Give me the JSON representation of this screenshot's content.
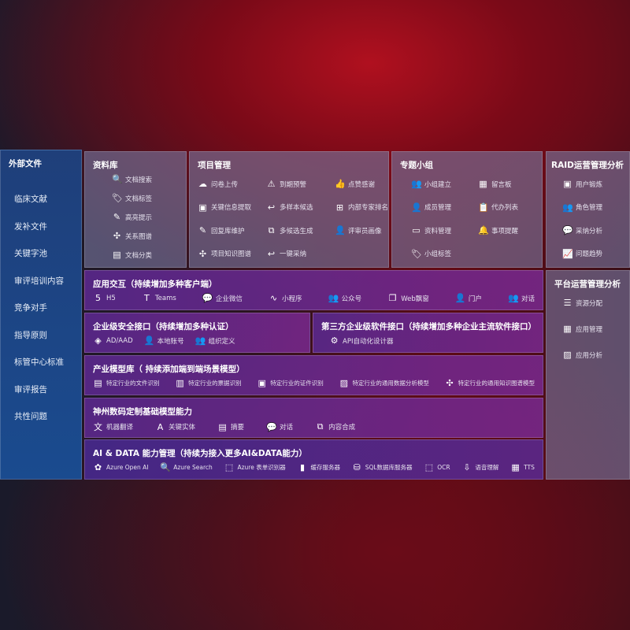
{
  "external": {
    "title": "外部文件",
    "items": [
      "临床文献",
      "发补文件",
      "关键字池",
      "审评培训内容",
      "竞争对手",
      "指导原则",
      "标管中心标准",
      "审评报告",
      "共性问题"
    ]
  },
  "library": {
    "title": "资料库",
    "items": [
      {
        "icon": "document-search-icon",
        "g": "🔍",
        "label": "文档搜索"
      },
      {
        "icon": "tag-icon",
        "g": "🏷",
        "label": "文档标签"
      },
      {
        "icon": "pen-icon",
        "g": "✎",
        "label": "高亮提示"
      },
      {
        "icon": "graph-icon",
        "g": "✣",
        "label": "关系图谱"
      },
      {
        "icon": "document-classify-icon",
        "g": "▤",
        "label": "文档分类"
      }
    ]
  },
  "project": {
    "title": "项目管理",
    "items": [
      {
        "icon": "cloud-upload-icon",
        "g": "☁",
        "label": "问卷上传"
      },
      {
        "icon": "alarm-icon",
        "g": "⚠",
        "label": "到期预警"
      },
      {
        "icon": "thumbs-up-icon",
        "g": "👍",
        "label": "点赞感谢"
      },
      {
        "icon": "info-extract-icon",
        "g": "▣",
        "label": "关键信息提取"
      },
      {
        "icon": "reply-icon",
        "g": "↩",
        "label": "多样本候选"
      },
      {
        "icon": "ranking-icon",
        "g": "⊞",
        "label": "内部专家排名"
      },
      {
        "icon": "edit-icon",
        "g": "✎",
        "label": "回复库维护"
      },
      {
        "icon": "puzzle-icon",
        "g": "⧉",
        "label": "多候选生成"
      },
      {
        "icon": "user-icon",
        "g": "👤",
        "label": "评审员画像"
      },
      {
        "icon": "knowledge-graph-icon",
        "g": "✣",
        "label": "项目知识图谱"
      },
      {
        "icon": "reply-icon",
        "g": "↩",
        "label": "一键采纳"
      }
    ]
  },
  "group": {
    "title": "专题小组",
    "items": [
      {
        "icon": "users-icon",
        "g": "👥",
        "label": "小组建立"
      },
      {
        "icon": "bbs-icon",
        "g": "▦",
        "label": "留言板"
      },
      {
        "icon": "user-add-icon",
        "g": "👤",
        "label": "成员管理"
      },
      {
        "icon": "clipboard-icon",
        "g": "📋",
        "label": "代办列表"
      },
      {
        "icon": "folder-icon",
        "g": "▭",
        "label": "资料管理"
      },
      {
        "icon": "bell-icon",
        "g": "🔔",
        "label": "事项提醒"
      },
      {
        "icon": "tag-icon",
        "g": "🏷",
        "label": "小组标签"
      }
    ]
  },
  "raid": {
    "title": "RAID运营管理分析",
    "items": [
      {
        "icon": "id-card-icon",
        "g": "▣",
        "label": "用户锻炼"
      },
      {
        "icon": "users-icon",
        "g": "👥",
        "label": "角色管理"
      },
      {
        "icon": "qa-icon",
        "g": "💬",
        "label": "采纳分析"
      },
      {
        "icon": "trend-icon",
        "g": "📈",
        "label": "问题趋势"
      }
    ]
  },
  "platform": {
    "title": "平台运营管理分析",
    "items": [
      {
        "icon": "checklist-icon",
        "g": "☰",
        "label": "资源分配"
      },
      {
        "icon": "apps-icon",
        "g": "▦",
        "label": "应用管理"
      },
      {
        "icon": "chart-icon",
        "g": "▨",
        "label": "应用分析"
      }
    ]
  },
  "interaction": {
    "title": "应用交互（持续增加多种客户端）",
    "items": [
      {
        "icon": "html5-icon",
        "g": "5",
        "label": "H5"
      },
      {
        "icon": "teams-icon",
        "g": "T",
        "label": "Teams"
      },
      {
        "icon": "wechat-work-icon",
        "g": "💬",
        "label": "企业微信"
      },
      {
        "icon": "mini-program-icon",
        "g": "∿",
        "label": "小程序"
      },
      {
        "icon": "official-account-icon",
        "g": "👥",
        "label": "公众号"
      },
      {
        "icon": "window-icon",
        "g": "❐",
        "label": "Web飘窗"
      },
      {
        "icon": "portal-icon",
        "g": "👤",
        "label": "门户"
      },
      {
        "icon": "chat-icon",
        "g": "👥",
        "label": "对话"
      }
    ]
  },
  "security": {
    "title": "企业级安全接口（持续增加多种认证）",
    "items": [
      {
        "icon": "ad-icon",
        "g": "◈",
        "label": "AD/AAD"
      },
      {
        "icon": "local-account-icon",
        "g": "👤",
        "label": "本地账号"
      },
      {
        "icon": "org-icon",
        "g": "👥",
        "label": "组织定义"
      }
    ]
  },
  "third": {
    "title": "第三方企业级软件接口（持续增加多种企业主流软件接口）",
    "items": [
      {
        "icon": "api-gear-icon",
        "g": "⚙",
        "label": "API自动化设计器"
      }
    ]
  },
  "industry": {
    "title": "产业模型库（ 持续添加端到端场景模型）",
    "items": [
      {
        "icon": "file-icon",
        "g": "▤",
        "label": "特定行业的文件识别"
      },
      {
        "icon": "receipt-icon",
        "g": "▥",
        "label": "特定行业的票据识别"
      },
      {
        "icon": "id-card-icon",
        "g": "▣",
        "label": "特定行业的证件识别"
      },
      {
        "icon": "data-analysis-icon",
        "g": "▨",
        "label": "特定行业的通用数据分析模型"
      },
      {
        "icon": "knowledge-graph-icon",
        "g": "✣",
        "label": "特定行业的通用知识图谱模型"
      }
    ]
  },
  "base": {
    "title": "神州数码定制基础模型能力",
    "items": [
      {
        "icon": "translate-icon",
        "g": "文",
        "label": "机器翻译"
      },
      {
        "icon": "entity-icon",
        "g": "A",
        "label": "关键实体"
      },
      {
        "icon": "summary-icon",
        "g": "▤",
        "label": "摘要"
      },
      {
        "icon": "chat-bubble-icon",
        "g": "💬",
        "label": "对话"
      },
      {
        "icon": "synthesis-icon",
        "g": "⧉",
        "label": "内容合成"
      }
    ]
  },
  "aidata": {
    "title": "AI & DATA 能力管理（持续为接入更多AI&DATA能力）",
    "items": [
      {
        "icon": "openai-icon",
        "g": "✿",
        "label": "Azure Open AI"
      },
      {
        "icon": "search-icon",
        "g": "🔍",
        "label": "Azure Search"
      },
      {
        "icon": "form-recognizer-icon",
        "g": "⬚",
        "label": "Azure 表单识别器"
      },
      {
        "icon": "cache-server-icon",
        "g": "▮",
        "label": "缓存服务器"
      },
      {
        "icon": "sql-icon",
        "g": "⛁",
        "label": "SQL数据库服务器"
      },
      {
        "icon": "ocr-icon",
        "g": "⬚",
        "label": "OCR"
      },
      {
        "icon": "speech-icon",
        "g": "⇩",
        "label": "语音理解"
      },
      {
        "icon": "tts-icon",
        "g": "▦",
        "label": "TTS"
      }
    ]
  }
}
